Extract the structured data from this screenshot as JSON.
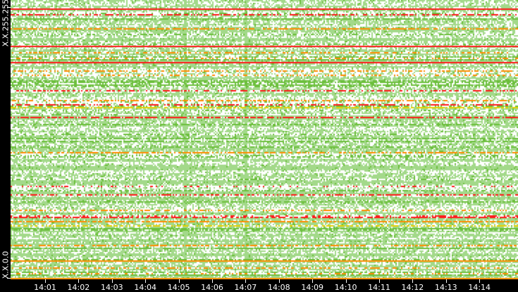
{
  "chart_data": {
    "type": "heatmap",
    "title": "",
    "x_ticks": [
      "14:01",
      "14:02",
      "14:03",
      "14:04",
      "14:05",
      "14:06",
      "14:07",
      "14:08",
      "14:09",
      "14:10",
      "14:11",
      "14:12",
      "14:13",
      "14:14"
    ],
    "y_labels": {
      "top": "X.X.255.255",
      "bottom": "X.X.0.0"
    },
    "colors": {
      "low": "#a3d98a",
      "mid": "#6cbf3c",
      "high_yellow": "#e8d000",
      "high_orange": "#ff8c00",
      "max": "#ff1a1a",
      "empty": "#ffffff",
      "background": "#000000"
    },
    "grid": false,
    "legend": "none"
  }
}
